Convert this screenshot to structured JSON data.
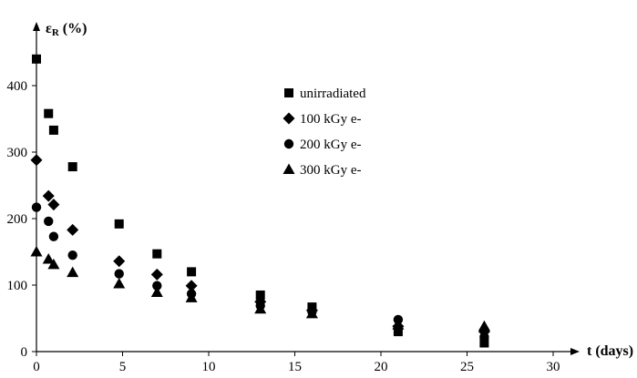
{
  "chart_data": {
    "type": "scatter",
    "title": "",
    "xlabel": "t (days)",
    "ylabel_main": "ε",
    "ylabel_sub": "R",
    "ylabel_rest": " (%)",
    "xlim": [
      0,
      35
    ],
    "ylim": [
      0,
      500
    ],
    "xticks": [
      0,
      5,
      10,
      15,
      20,
      25,
      30
    ],
    "yticks": [
      0,
      100,
      200,
      300,
      400
    ],
    "grid": false,
    "legend_position": "top-center",
    "series": [
      {
        "name": "unirradiated",
        "marker": "square",
        "color": "#000000",
        "x": [
          0,
          0.7,
          1,
          2.1,
          4.8,
          7,
          9,
          13,
          16,
          21,
          26
        ],
        "y": [
          440,
          358,
          333,
          278,
          192,
          147,
          120,
          85,
          67,
          30,
          13
        ]
      },
      {
        "name": "100 kGy e-",
        "marker": "diamond",
        "color": "#000000",
        "x": [
          0,
          0.7,
          1,
          2.1,
          4.8,
          7,
          9,
          13,
          16,
          21,
          26
        ],
        "y": [
          288,
          234,
          221,
          183,
          136,
          116,
          99,
          75,
          62,
          38,
          30
        ]
      },
      {
        "name": "200 kGy e-",
        "marker": "circle",
        "color": "#000000",
        "x": [
          0,
          0.7,
          1,
          2.1,
          4.8,
          7,
          9,
          13,
          16,
          21,
          26
        ],
        "y": [
          217,
          196,
          173,
          145,
          117,
          99,
          87,
          69,
          60,
          48,
          22
        ]
      },
      {
        "name": "300 kGy e-",
        "marker": "triangle",
        "color": "#000000",
        "x": [
          0,
          0.7,
          1,
          2.1,
          4.8,
          7,
          9,
          13,
          16,
          21,
          26
        ],
        "y": [
          150,
          139,
          131,
          119,
          102,
          89,
          81,
          64,
          57,
          40,
          38
        ]
      }
    ]
  }
}
